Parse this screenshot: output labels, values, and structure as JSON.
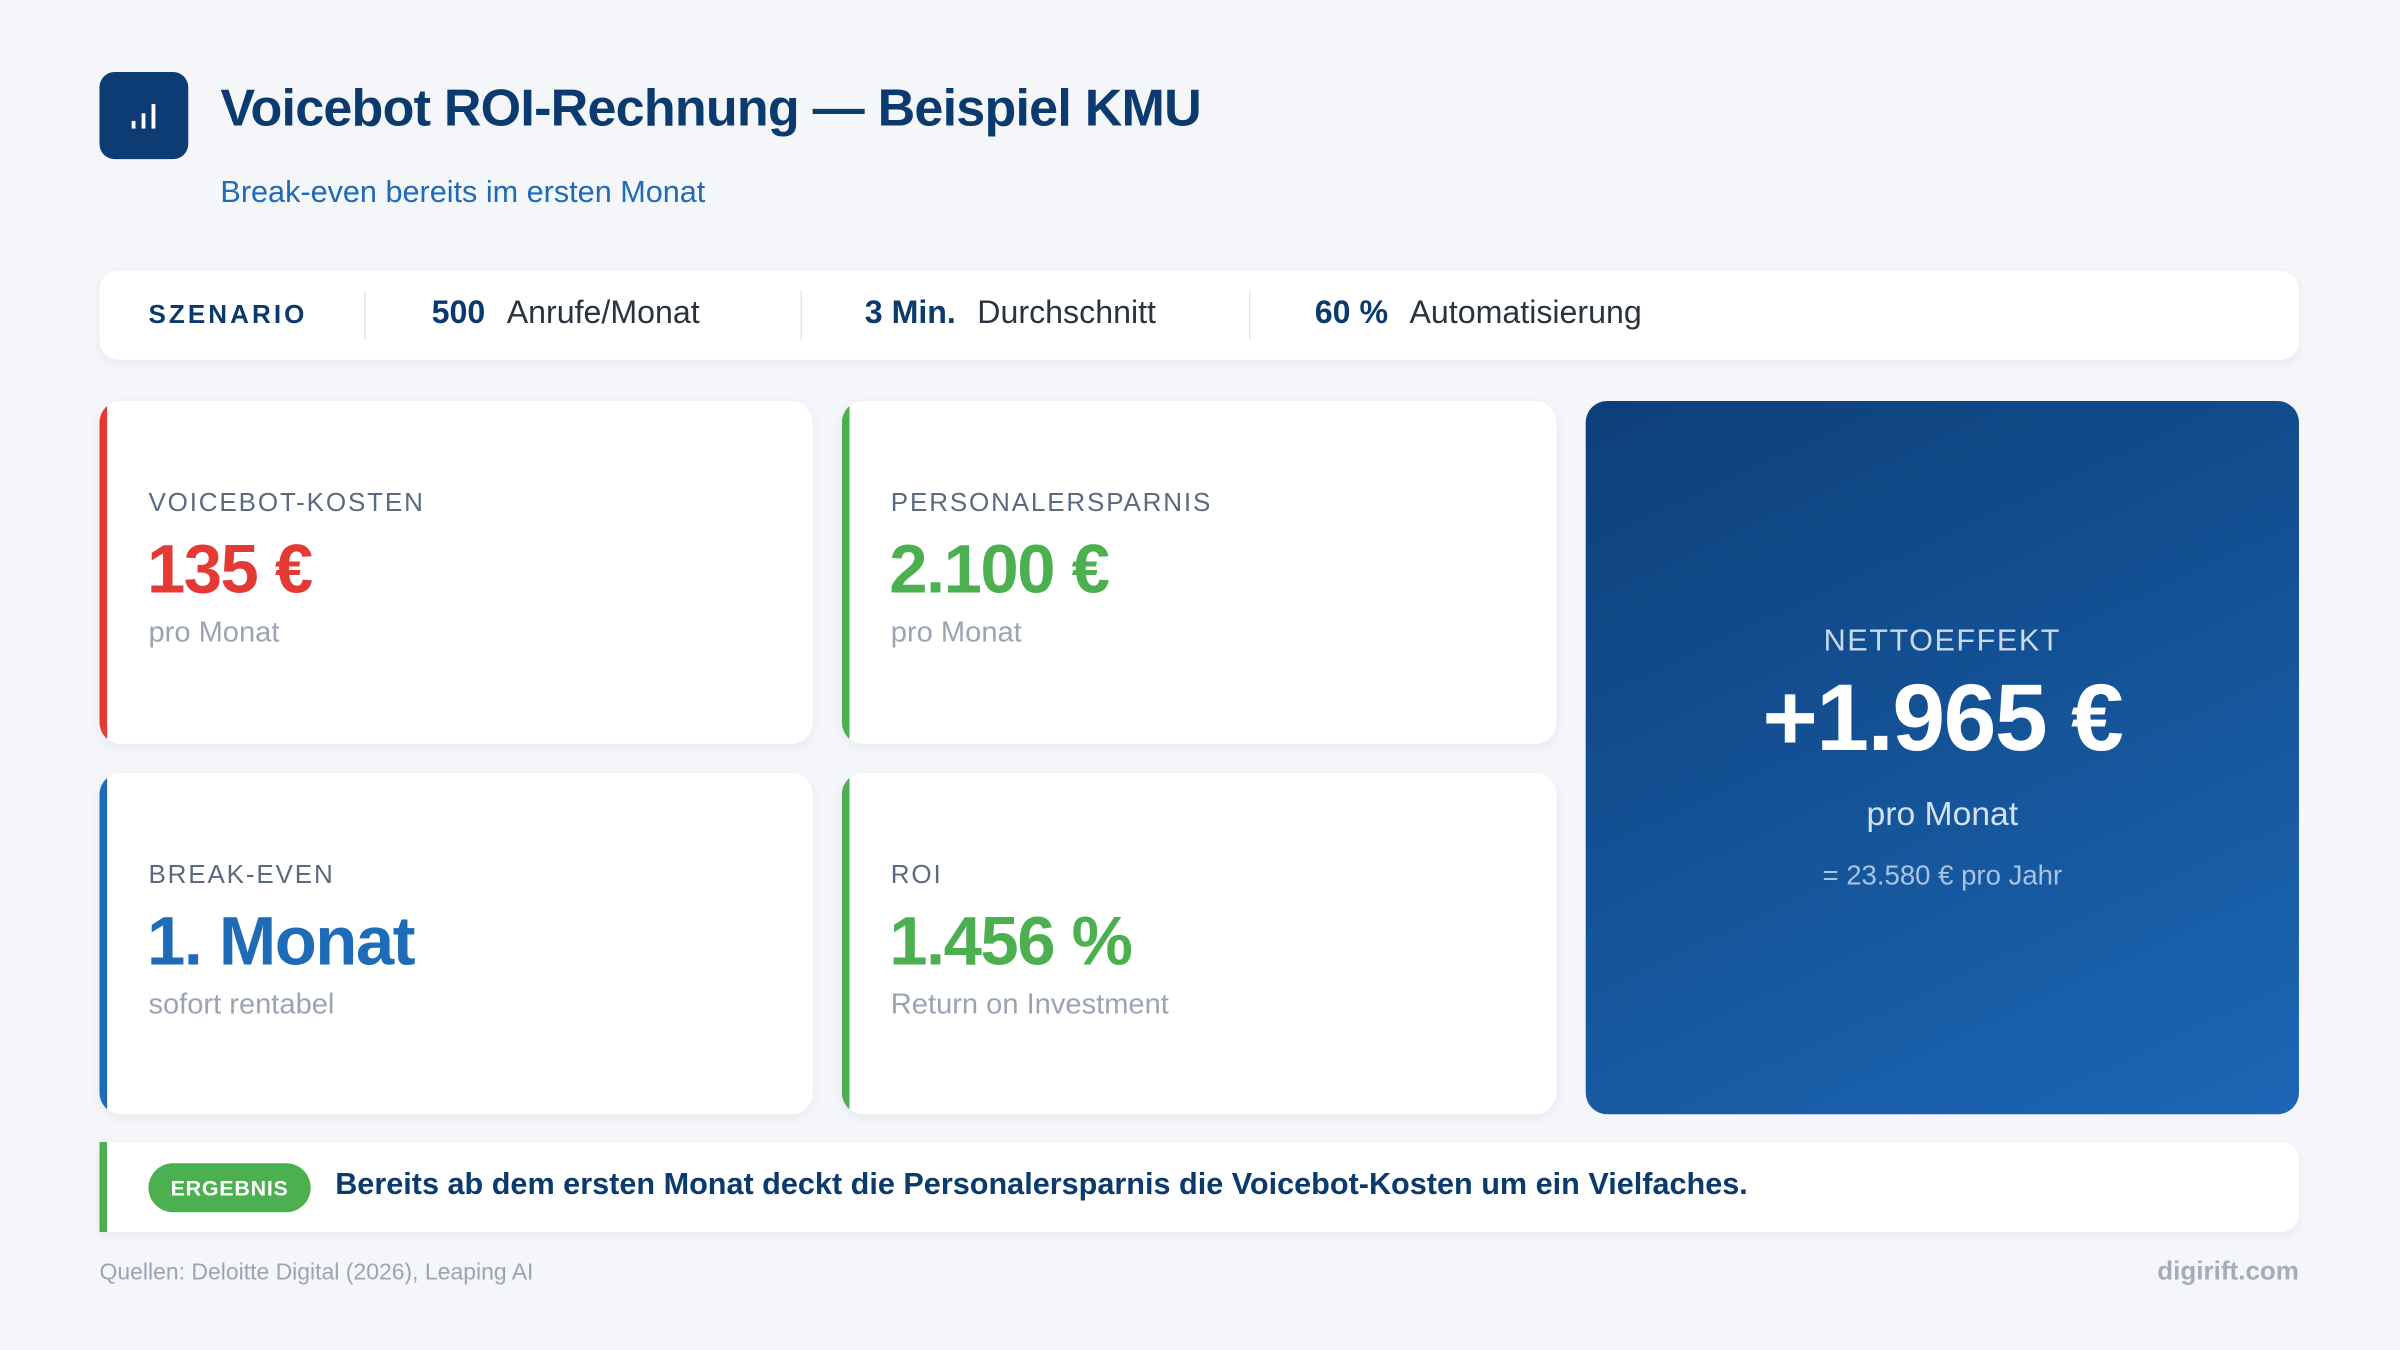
{
  "header": {
    "icon": "bar-chart-icon",
    "title": "Voicebot ROI-Rechnung — Beispiel KMU",
    "subtitle": "Break-even bereits im ersten Monat"
  },
  "scenario": {
    "label": "SZENARIO",
    "items": [
      {
        "value": "500",
        "text": "Anrufe/Monat"
      },
      {
        "value": "3 Min.",
        "text": "Durchschnitt"
      },
      {
        "value": "60 %",
        "text": "Automatisierung"
      }
    ]
  },
  "cards": [
    {
      "label": "VOICEBOT-KOSTEN",
      "value": "135 €",
      "sub": "pro Monat",
      "color": "#e53935"
    },
    {
      "label": "PERSONALERSPARNIS",
      "value": "2.100 €",
      "sub": "pro Monat",
      "color": "#4caf50"
    },
    {
      "label": "BREAK-EVEN",
      "value": "1. Monat",
      "sub": "sofort rentabel",
      "color": "#1e6bb8"
    },
    {
      "label": "ROI",
      "value": "1.456 %",
      "sub": "Return on Investment",
      "color": "#4caf50"
    }
  ],
  "net": {
    "label": "NETTOEFFEKT",
    "value": "+1.965 €",
    "sub": "pro Monat",
    "year": "= 23.580 € pro Jahr"
  },
  "result": {
    "badge": "ERGEBNIS",
    "text": "Bereits ab dem ersten Monat deckt die Personalersparnis die Voicebot-Kosten um ein Vielfaches."
  },
  "footer": {
    "sources": "Quellen: Deloitte Digital (2026), Leaping AI",
    "brand": "digirift.com"
  }
}
